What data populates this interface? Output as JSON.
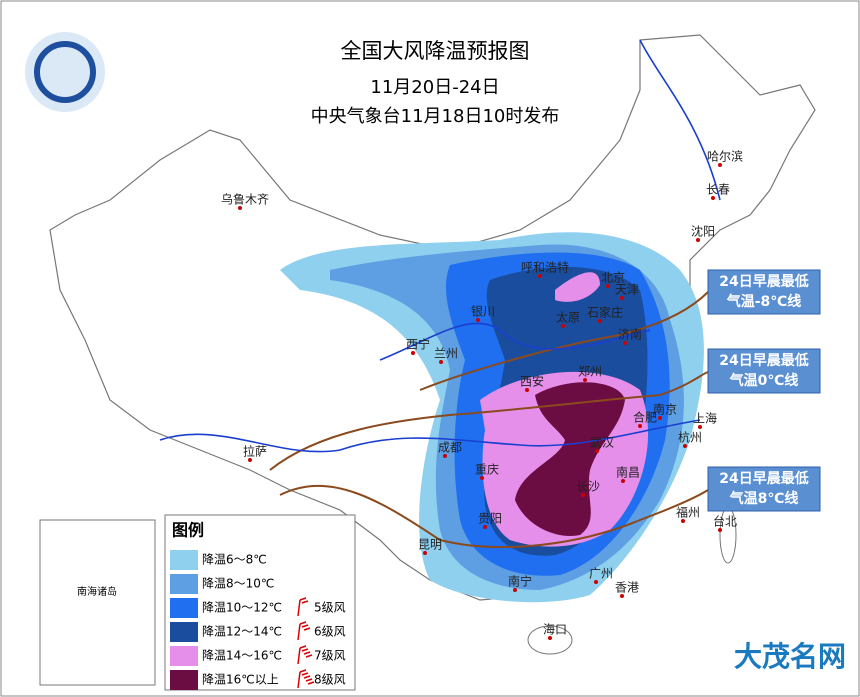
{
  "header": {
    "title": "全国大风降温预报图",
    "dates": "11月20日-24日",
    "issuer": "中央气象台11月18日10时发布"
  },
  "cities": [
    "乌鲁木齐",
    "哈尔滨",
    "长春",
    "沈阳",
    "呼和浩特",
    "北京",
    "天津",
    "银川",
    "太原",
    "石家庄",
    "济南",
    "西宁",
    "兰州",
    "西安",
    "郑州",
    "南京",
    "合肥",
    "上海",
    "武汉",
    "杭州",
    "成都",
    "重庆",
    "南昌",
    "长沙",
    "拉萨",
    "贵阳",
    "福州",
    "台北",
    "昆明",
    "南宁",
    "广州",
    "香港",
    "海口"
  ],
  "inset_label": "南海诸岛",
  "callouts": [
    {
      "lines": [
        "24日早晨最低",
        "气温-8℃线"
      ]
    },
    {
      "lines": [
        "24日早晨最低",
        "气温0℃线"
      ]
    },
    {
      "lines": [
        "24日早晨最低",
        "气温8℃线"
      ]
    }
  ],
  "legend": {
    "title": "图例",
    "cooling": [
      {
        "label": "降温6～8℃",
        "color": "#8fd0ef"
      },
      {
        "label": "降温8～10℃",
        "color": "#5e9fe4"
      },
      {
        "label": "降温10～12℃",
        "color": "#1f6ff0"
      },
      {
        "label": "降温12～14℃",
        "color": "#1b4d9e"
      },
      {
        "label": "降温14～16℃",
        "color": "#e68fea"
      },
      {
        "label": "降温16℃以上",
        "color": "#6b0c42"
      }
    ],
    "wind": [
      "5级风",
      "6级风",
      "7级风",
      "8级风"
    ]
  },
  "watermark": "大茂名网"
}
